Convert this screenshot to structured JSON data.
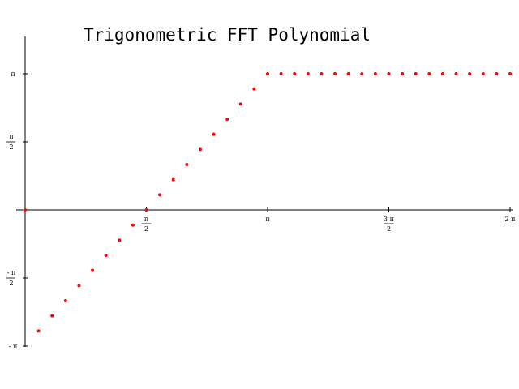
{
  "chart_data": {
    "type": "scatter",
    "title": "Trigonometric FFT Polynomial",
    "xlabel": "",
    "ylabel": "",
    "xlim": [
      0,
      6.283185
    ],
    "ylim": [
      -3.141593,
      3.65
    ],
    "grid": false,
    "marker_color": "#ff0000",
    "x_ticks": [
      {
        "value": 1.570796,
        "num": "π",
        "den": "2"
      },
      {
        "value": 3.141593,
        "num": "π",
        "den": ""
      },
      {
        "value": 4.712389,
        "num": "3 π",
        "den": "2"
      },
      {
        "value": 6.283185,
        "num": "2 π",
        "den": ""
      }
    ],
    "y_ticks": [
      {
        "value": 3.141593,
        "num": "π",
        "den": ""
      },
      {
        "value": 1.570796,
        "num": "π",
        "den": "2"
      },
      {
        "value": -1.570796,
        "num": "- π",
        "den": "2"
      },
      {
        "value": -3.141593,
        "num": "- π",
        "den": ""
      }
    ],
    "series": [
      {
        "x": [
          0,
          0.174533,
          0.349066,
          0.523599,
          0.698132,
          0.872665,
          1.047198,
          1.22173,
          1.396263,
          1.570796,
          1.745329,
          1.919862,
          2.094395,
          2.268928,
          2.443461,
          2.617994,
          2.792527,
          2.96706,
          3.141593,
          3.316126,
          3.490659,
          3.665191,
          3.839724,
          4.014257,
          4.18879,
          4.363323,
          4.537856,
          4.712389,
          4.886922,
          5.061455,
          5.235988,
          5.410521,
          5.585054,
          5.759587,
          5.934119,
          6.108652,
          6.283185
        ],
        "y": [
          0,
          -2.792527,
          -2.443461,
          -2.094395,
          -1.745329,
          -1.396263,
          -1.047198,
          -0.698132,
          -0.349066,
          0,
          0.349066,
          0.698132,
          1.047198,
          1.396263,
          1.745329,
          2.094395,
          2.443461,
          2.792527,
          3.141593,
          3.141593,
          3.141593,
          3.141593,
          3.141593,
          3.141593,
          3.141593,
          3.141593,
          3.141593,
          3.141593,
          3.141593,
          3.141593,
          3.141593,
          3.141593,
          3.141593,
          3.141593,
          3.141593,
          3.141593,
          3.141593
        ]
      }
    ]
  }
}
